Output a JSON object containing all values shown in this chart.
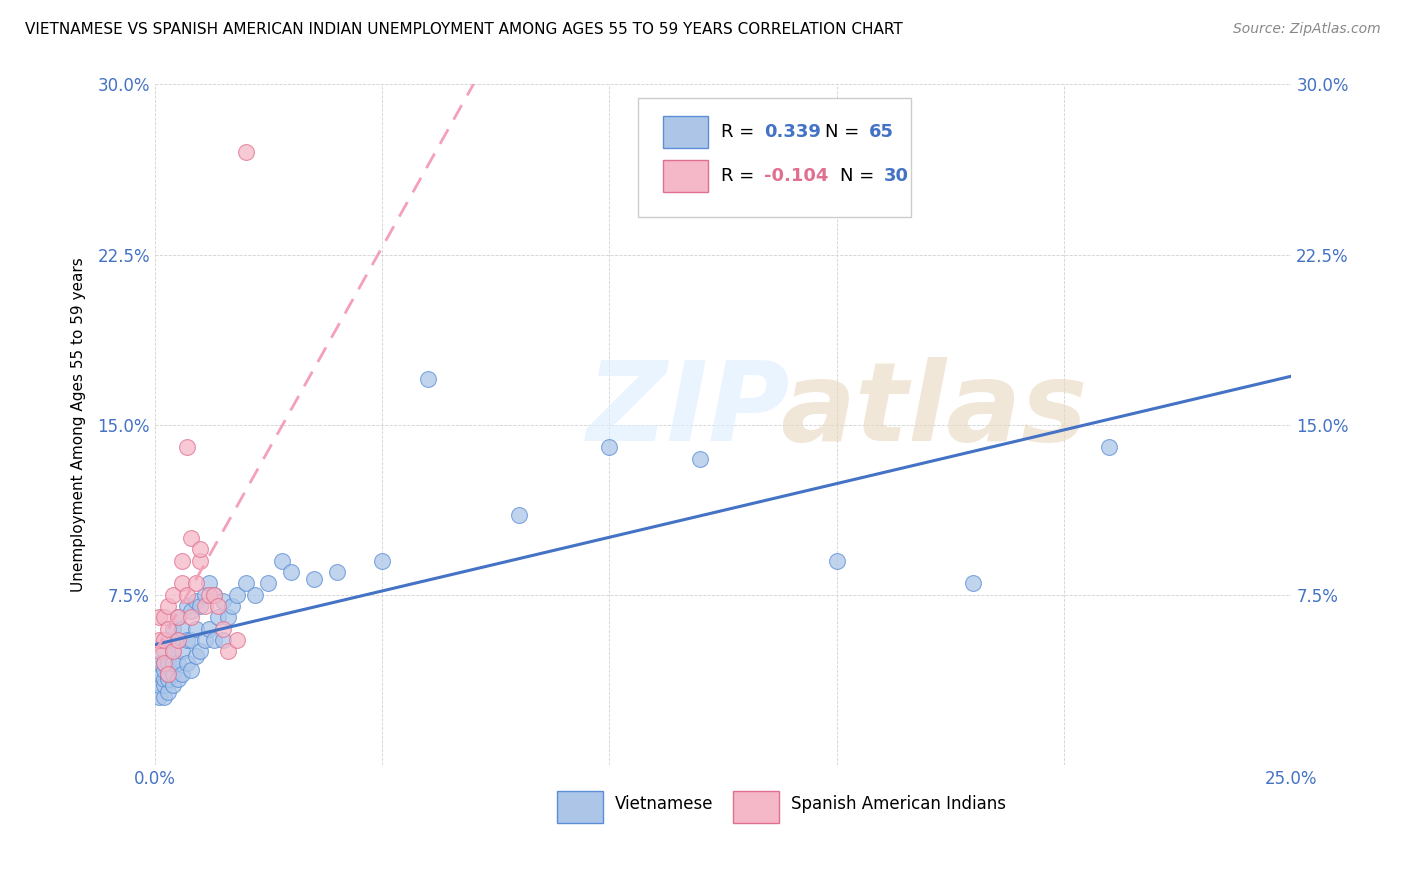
{
  "title": "VIETNAMESE VS SPANISH AMERICAN INDIAN UNEMPLOYMENT AMONG AGES 55 TO 59 YEARS CORRELATION CHART",
  "source": "Source: ZipAtlas.com",
  "ylabel": "Unemployment Among Ages 55 to 59 years",
  "xlim": [
    0.0,
    0.25
  ],
  "ylim": [
    0.0,
    0.3
  ],
  "R_blue": 0.339,
  "N_blue": 65,
  "R_pink": -0.104,
  "N_pink": 30,
  "blue_fill": "#adc6e8",
  "blue_edge": "#5b8ed6",
  "pink_fill": "#f4b8c8",
  "pink_edge": "#e07090",
  "blue_line": "#4472c4",
  "pink_line": "#f4a0b8",
  "vietnamese_x": [
    0.001,
    0.001,
    0.001,
    0.001,
    0.002,
    0.002,
    0.002,
    0.002,
    0.002,
    0.002,
    0.003,
    0.003,
    0.003,
    0.003,
    0.003,
    0.004,
    0.004,
    0.004,
    0.004,
    0.004,
    0.005,
    0.005,
    0.005,
    0.005,
    0.006,
    0.006,
    0.006,
    0.007,
    0.007,
    0.007,
    0.008,
    0.008,
    0.008,
    0.009,
    0.009,
    0.009,
    0.01,
    0.01,
    0.011,
    0.011,
    0.012,
    0.012,
    0.013,
    0.013,
    0.014,
    0.015,
    0.015,
    0.016,
    0.017,
    0.018,
    0.02,
    0.022,
    0.025,
    0.028,
    0.03,
    0.035,
    0.04,
    0.05,
    0.06,
    0.08,
    0.1,
    0.12,
    0.15,
    0.18,
    0.21
  ],
  "vietnamese_y": [
    0.03,
    0.035,
    0.04,
    0.045,
    0.03,
    0.035,
    0.038,
    0.042,
    0.045,
    0.05,
    0.032,
    0.038,
    0.04,
    0.045,
    0.055,
    0.035,
    0.04,
    0.045,
    0.05,
    0.06,
    0.038,
    0.045,
    0.055,
    0.065,
    0.04,
    0.05,
    0.06,
    0.045,
    0.055,
    0.07,
    0.042,
    0.055,
    0.068,
    0.048,
    0.06,
    0.072,
    0.05,
    0.07,
    0.055,
    0.075,
    0.06,
    0.08,
    0.055,
    0.075,
    0.065,
    0.055,
    0.072,
    0.065,
    0.07,
    0.075,
    0.08,
    0.075,
    0.08,
    0.09,
    0.085,
    0.082,
    0.085,
    0.09,
    0.17,
    0.11,
    0.14,
    0.135,
    0.09,
    0.08,
    0.14
  ],
  "spanish_x": [
    0.001,
    0.001,
    0.001,
    0.002,
    0.002,
    0.002,
    0.003,
    0.003,
    0.003,
    0.004,
    0.004,
    0.005,
    0.005,
    0.006,
    0.006,
    0.007,
    0.007,
    0.008,
    0.008,
    0.009,
    0.01,
    0.01,
    0.011,
    0.012,
    0.013,
    0.014,
    0.015,
    0.016,
    0.018,
    0.02
  ],
  "spanish_y": [
    0.05,
    0.055,
    0.065,
    0.045,
    0.055,
    0.065,
    0.04,
    0.06,
    0.07,
    0.05,
    0.075,
    0.055,
    0.065,
    0.08,
    0.09,
    0.075,
    0.14,
    0.065,
    0.1,
    0.08,
    0.09,
    0.095,
    0.07,
    0.075,
    0.075,
    0.07,
    0.06,
    0.05,
    0.055,
    0.27
  ]
}
